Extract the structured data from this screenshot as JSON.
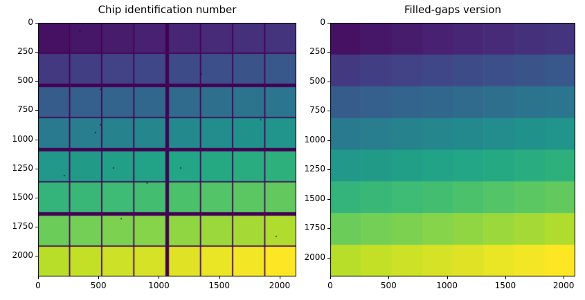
{
  "figure": {
    "background": "#ffffff"
  },
  "colormap": {
    "name": "viridis",
    "anchors": [
      "#440154",
      "#482475",
      "#414487",
      "#355f8d",
      "#2a788e",
      "#21918c",
      "#22a884",
      "#44bf70",
      "#7ad151",
      "#bddf26",
      "#fde725"
    ]
  },
  "chart_data": [
    {
      "type": "heatmap",
      "title": "Chip identification number",
      "rows": 8,
      "cols": 8,
      "chip_size_units": 256,
      "chip_ids": [
        [
          0,
          1,
          2,
          3,
          4,
          5,
          6,
          7
        ],
        [
          8,
          9,
          10,
          11,
          12,
          13,
          14,
          15
        ],
        [
          16,
          17,
          18,
          19,
          20,
          21,
          22,
          23
        ],
        [
          24,
          25,
          26,
          27,
          28,
          29,
          30,
          31
        ],
        [
          32,
          33,
          34,
          35,
          36,
          37,
          38,
          39
        ],
        [
          40,
          41,
          42,
          43,
          44,
          45,
          46,
          47
        ],
        [
          48,
          49,
          50,
          51,
          52,
          53,
          54,
          55
        ],
        [
          56,
          57,
          58,
          59,
          60,
          61,
          62,
          63
        ]
      ],
      "value_normalization": {
        "offset": 3,
        "scale": 66
      },
      "gaps": {
        "present": true,
        "thin_units": 10,
        "thick_units": 30,
        "thick_after_cols": [
          3
        ],
        "thick_after_rows": [
          1,
          3,
          5
        ],
        "gap_color": "#440154"
      },
      "xlim": [
        0,
        2138
      ],
      "ylim": [
        2178,
        0
      ],
      "x_ticks": [
        0,
        500,
        1000,
        1500,
        2000
      ],
      "y_ticks": [
        0,
        250,
        500,
        750,
        1000,
        1250,
        1500,
        1750,
        2000
      ],
      "defect_pixels": [
        [
          0.16,
          0.03
        ],
        [
          0.63,
          0.2
        ],
        [
          0.24,
          0.26
        ],
        [
          0.86,
          0.38
        ],
        [
          0.24,
          0.4
        ],
        [
          0.22,
          0.43
        ],
        [
          0.29,
          0.57
        ],
        [
          0.55,
          0.57
        ],
        [
          0.1,
          0.6
        ],
        [
          0.42,
          0.63
        ],
        [
          0.32,
          0.77
        ],
        [
          0.92,
          0.84
        ]
      ],
      "defect_color": "#1d0b3e"
    },
    {
      "type": "heatmap",
      "title": "Filled-gaps version",
      "rows": 8,
      "cols": 8,
      "chip_size_units": 256,
      "chip_ids": [
        [
          0,
          1,
          2,
          3,
          4,
          5,
          6,
          7
        ],
        [
          8,
          9,
          10,
          11,
          12,
          13,
          14,
          15
        ],
        [
          16,
          17,
          18,
          19,
          20,
          21,
          22,
          23
        ],
        [
          24,
          25,
          26,
          27,
          28,
          29,
          30,
          31
        ],
        [
          32,
          33,
          34,
          35,
          36,
          37,
          38,
          39
        ],
        [
          40,
          41,
          42,
          43,
          44,
          45,
          46,
          47
        ],
        [
          48,
          49,
          50,
          51,
          52,
          53,
          54,
          55
        ],
        [
          56,
          57,
          58,
          59,
          60,
          61,
          62,
          63
        ]
      ],
      "value_normalization": {
        "offset": 3,
        "scale": 66
      },
      "gaps": {
        "present": false
      },
      "xlim": [
        0,
        2100
      ],
      "ylim": [
        2160,
        0
      ],
      "x_ticks": [
        0,
        500,
        1000,
        1500,
        2000
      ],
      "y_ticks": [
        0,
        250,
        500,
        750,
        1000,
        1250,
        1500,
        1750,
        2000
      ],
      "defect_pixels": [],
      "defect_color": "#1d0b3e"
    }
  ]
}
